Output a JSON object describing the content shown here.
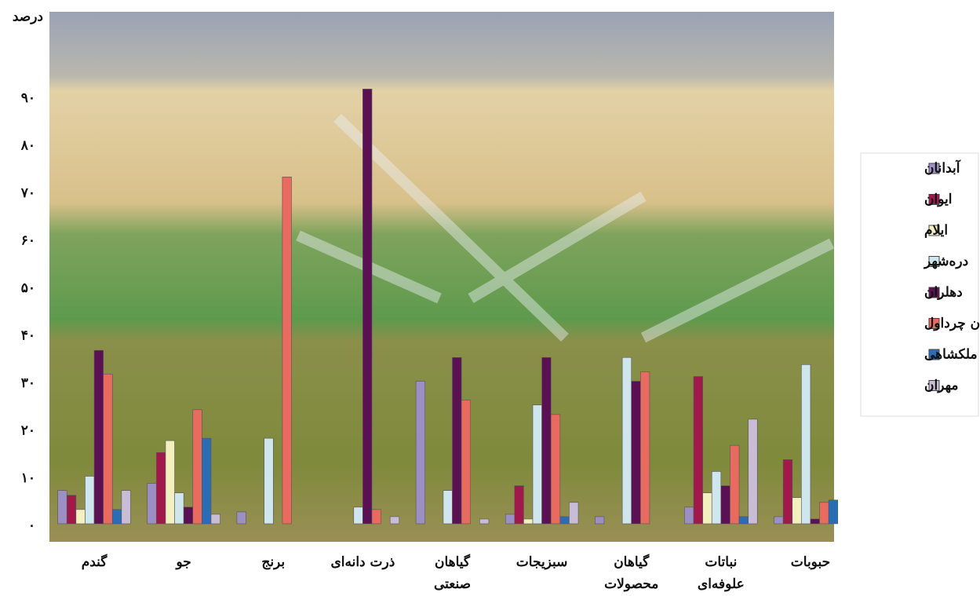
{
  "chart_data": {
    "type": "bar",
    "title": "درصد",
    "categories": [
      "گندم",
      "جو",
      "برنج",
      "ذرت دانه‌ای",
      "گیاهان\nصنعتی",
      "سبزیجات",
      "گیاهان\nمحصولات",
      "نباتات\nعلوفه‌ای",
      "حبوبات"
    ],
    "series": [
      {
        "name": "آبدانان",
        "color": "#9b8fc4",
        "values": [
          7,
          8.5,
          2.5,
          0,
          30,
          2,
          1.5,
          3.5,
          1.5
        ]
      },
      {
        "name": "ایوان",
        "color": "#a0194a",
        "values": [
          6,
          15,
          0,
          0,
          0,
          8,
          0,
          31,
          13.5
        ]
      },
      {
        "name": "ایلام",
        "color": "#f3f0c0",
        "values": [
          3,
          17.5,
          0,
          0,
          0,
          1,
          0,
          6.5,
          5.5
        ]
      },
      {
        "name": "دره‌شهر",
        "color": "#cfe6ee",
        "values": [
          10,
          6.5,
          18,
          3.5,
          7,
          25,
          35,
          11,
          33.5
        ]
      },
      {
        "name": "دهلران",
        "color": "#5a1052",
        "values": [
          36.5,
          3.5,
          0,
          91.5,
          35,
          35,
          30,
          8,
          1
        ]
      },
      {
        "name": "شیروان چرداول",
        "color": "#e96a5f",
        "values": [
          31.5,
          24,
          73,
          3,
          26,
          23,
          32,
          16.5,
          4.5
        ]
      },
      {
        "name": "ملکشاهی",
        "color": "#2a6db5",
        "values": [
          3,
          18,
          0,
          0,
          0,
          1.5,
          0,
          1.5,
          5
        ]
      },
      {
        "name": "مهران",
        "color": "#c9bcd6",
        "values": [
          7,
          2,
          0,
          1.5,
          1,
          4.5,
          0,
          22,
          0
        ]
      }
    ],
    "ylim": [
      0,
      100
    ],
    "yticks": [
      {
        "value": 0,
        "label": "٠"
      },
      {
        "value": 10,
        "label": "۱۰"
      },
      {
        "value": 20,
        "label": "۲۰"
      },
      {
        "value": 30,
        "label": "۳۰"
      },
      {
        "value": 40,
        "label": "۴۰"
      },
      {
        "value": 50,
        "label": "۵۰"
      },
      {
        "value": 60,
        "label": "۶۰"
      },
      {
        "value": 70,
        "label": "۷۰"
      },
      {
        "value": 80,
        "label": "۸۰"
      },
      {
        "value": 90,
        "label": "۹۰"
      }
    ],
    "legend": "right"
  }
}
